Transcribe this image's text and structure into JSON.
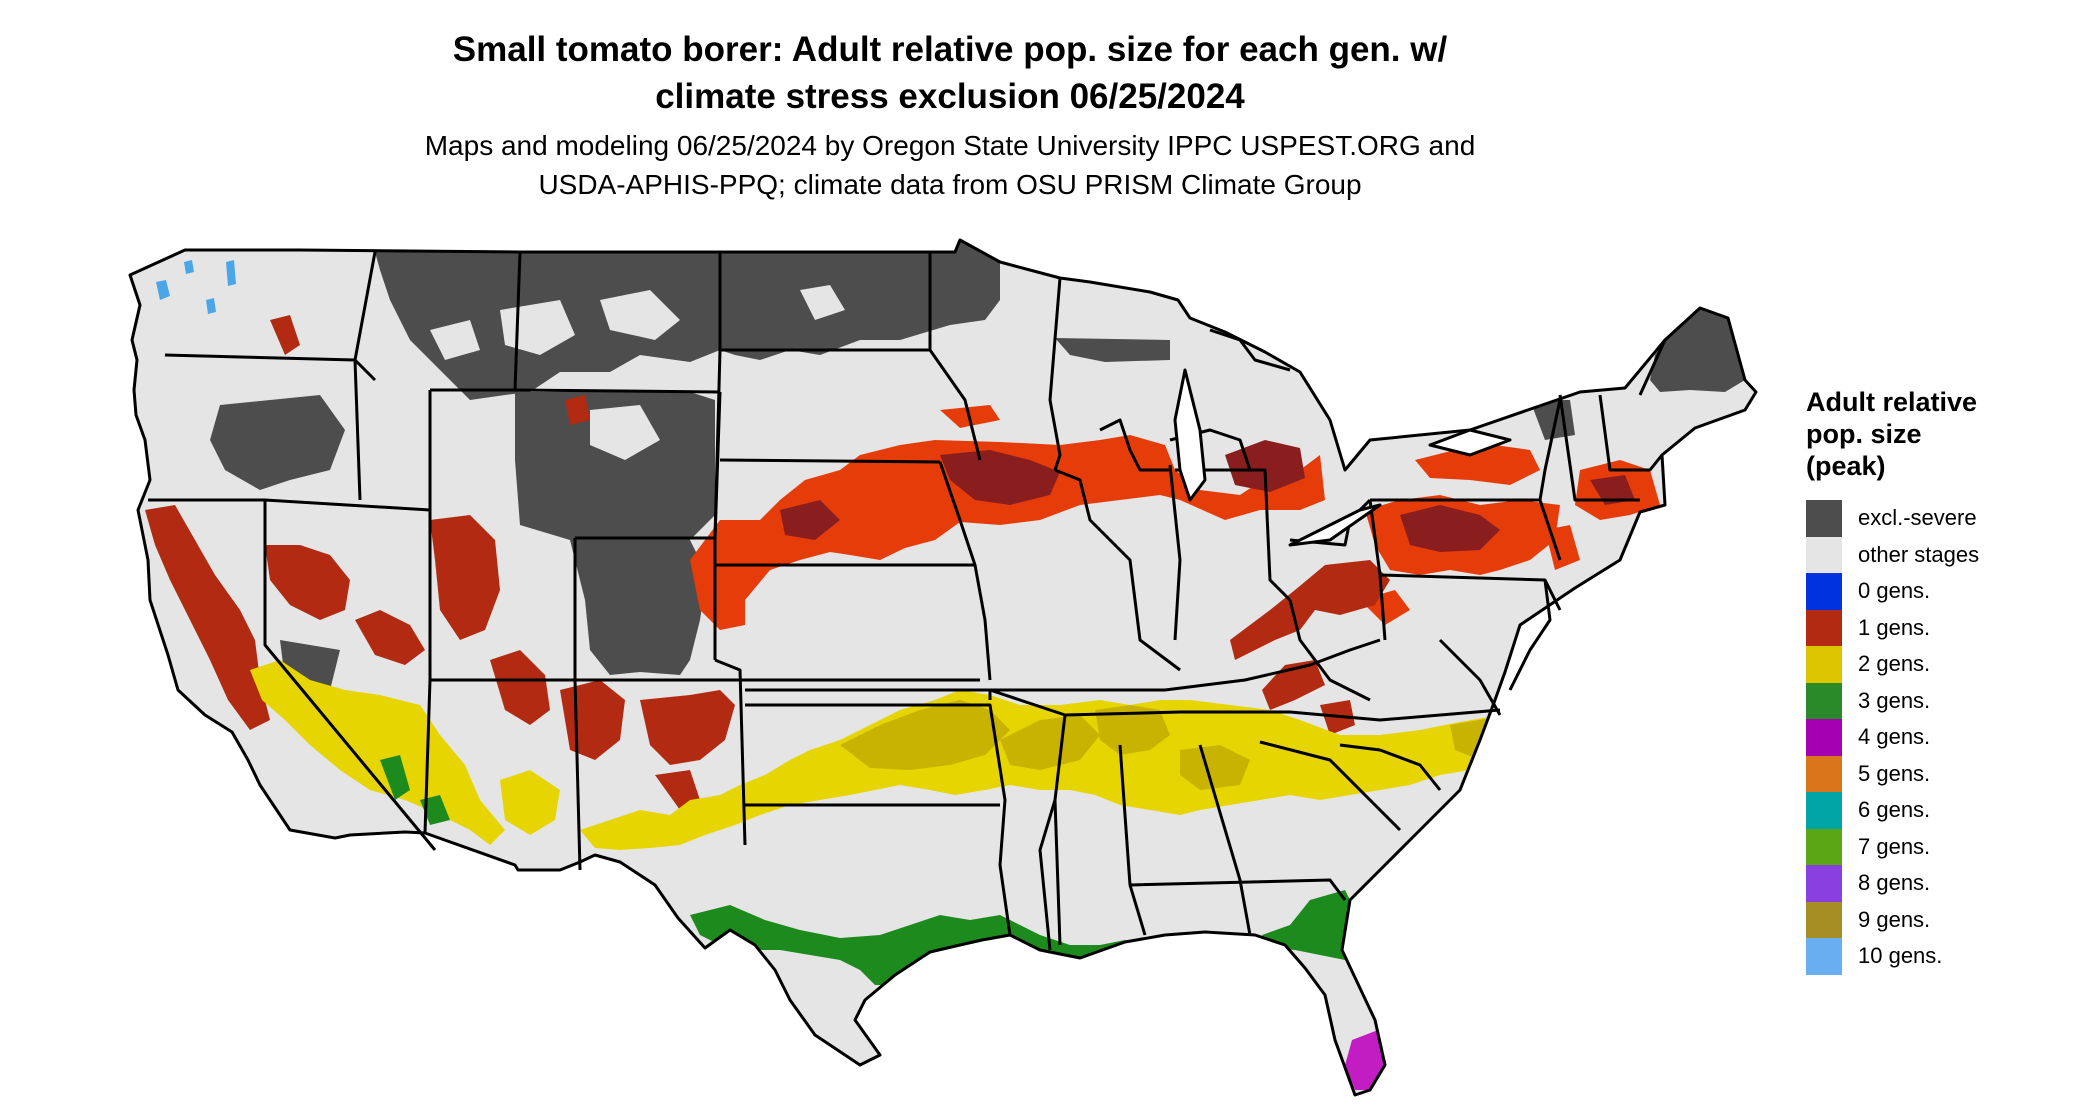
{
  "title": {
    "line1": "Small tomato borer: Adult relative pop. size for each gen. w/",
    "line2": "climate stress exclusion 06/25/2024"
  },
  "subtitle": {
    "line1": "Maps and modeling 06/25/2024 by Oregon State University IPPC USPEST.ORG and",
    "line2": "USDA-APHIS-PPQ; climate data from OSU PRISM Climate Group"
  },
  "legend": {
    "title_lines": [
      "Adult relative",
      "pop. size",
      "(peak)"
    ],
    "items": [
      {
        "label": "excl.-severe",
        "color": "#4d4d4d"
      },
      {
        "label": "other stages",
        "color": "#e5e5e5"
      },
      {
        "label": "0 gens.",
        "color": "#0033e0"
      },
      {
        "label": "1 gens.",
        "color": "#b22a12"
      },
      {
        "label": "2 gens.",
        "color": "#dcc600"
      },
      {
        "label": "3 gens.",
        "color": "#2a8a2a"
      },
      {
        "label": "4 gens.",
        "color": "#a200b0"
      },
      {
        "label": "5 gens.",
        "color": "#d9761a"
      },
      {
        "label": "6 gens.",
        "color": "#00a6a6"
      },
      {
        "label": "7 gens.",
        "color": "#5aa614"
      },
      {
        "label": "8 gens.",
        "color": "#8a3fe0"
      },
      {
        "label": "9 gens.",
        "color": "#a68e24"
      },
      {
        "label": "10 gens.",
        "color": "#6aaef2"
      }
    ]
  },
  "map_colors": {
    "land": "#e5e5e5",
    "excluded": "#4d4d4d",
    "gen1_peak": "#e63c0a",
    "gen1_dark": "#8a1e1e",
    "gen1_red": "#b22a12",
    "gen2_yellow": "#e6d500",
    "gen2_olive": "#c8b400",
    "gen3_green": "#1d8a1d",
    "gen4_magenta": "#c21dc2",
    "gen10_blue": "#4aa6e6",
    "borders": "#000000"
  }
}
